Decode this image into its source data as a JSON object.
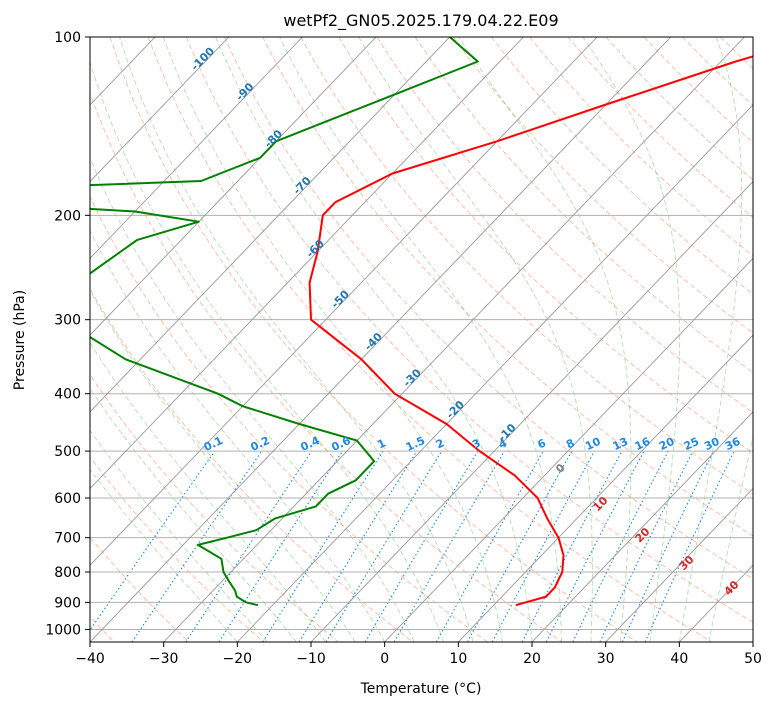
{
  "chart_data": {
    "type": "line",
    "subtype": "skew-t log-p",
    "title": "wetPf2_GN05.2025.179.04.22.E09",
    "xlabel": "Temperature (°C)",
    "ylabel": "Pressure (hPa)",
    "xlim": [
      -40,
      50
    ],
    "ylim": [
      1050,
      100
    ],
    "yscale": "log",
    "x_ticks": [
      -40,
      -30,
      -20,
      -10,
      0,
      10,
      20,
      30,
      40,
      50
    ],
    "y_ticks": [
      100,
      200,
      300,
      400,
      500,
      600,
      700,
      800,
      900,
      1000
    ],
    "grid": true,
    "colors": {
      "temperature": "#ff0000",
      "dewpoint": "#008000",
      "isotherm_label": "#1f77b4",
      "mixing_ratio": "#1e88e5",
      "moist_adiabat": "#2ca02c",
      "dry_adiabat": "#ff7f50",
      "grid": "#b0b0b0",
      "skew_line": "#999999"
    },
    "series": [
      {
        "name": "Temperature",
        "color": "#ff0000",
        "points": [
          [
            100,
            -20
          ],
          [
            110,
            -28
          ],
          [
            130,
            -40
          ],
          [
            150,
            -50
          ],
          [
            170,
            -60
          ],
          [
            190,
            -64
          ],
          [
            200,
            -64
          ],
          [
            230,
            -60
          ],
          [
            260,
            -57
          ],
          [
            300,
            -52
          ],
          [
            350,
            -40
          ],
          [
            400,
            -31
          ],
          [
            450,
            -20
          ],
          [
            500,
            -12
          ],
          [
            550,
            -4
          ],
          [
            600,
            2
          ],
          [
            650,
            6
          ],
          [
            700,
            10
          ],
          [
            750,
            13
          ],
          [
            800,
            15
          ],
          [
            850,
            16
          ],
          [
            880,
            16
          ],
          [
            900,
            14
          ],
          [
            910,
            13
          ]
        ]
      },
      {
        "name": "Dewpoint",
        "color": "#008000",
        "points": [
          [
            100,
            -70
          ],
          [
            110,
            -63
          ],
          [
            125,
            -70
          ],
          [
            150,
            -80
          ],
          [
            160,
            -80
          ],
          [
            175,
            -85
          ],
          [
            180,
            -110
          ],
          [
            190,
            -113
          ],
          [
            197,
            -90
          ],
          [
            205,
            -80
          ],
          [
            220,
            -86
          ],
          [
            250,
            -88
          ],
          [
            270,
            -92
          ],
          [
            290,
            -87
          ],
          [
            320,
            -80
          ],
          [
            350,
            -72
          ],
          [
            400,
            -55
          ],
          [
            420,
            -50
          ],
          [
            450,
            -40
          ],
          [
            480,
            -30
          ],
          [
            520,
            -25
          ],
          [
            560,
            -25
          ],
          [
            590,
            -27
          ],
          [
            620,
            -27
          ],
          [
            650,
            -31
          ],
          [
            680,
            -32
          ],
          [
            700,
            -35
          ],
          [
            720,
            -38
          ],
          [
            760,
            -33
          ],
          [
            800,
            -31
          ],
          [
            830,
            -29
          ],
          [
            860,
            -27
          ],
          [
            880,
            -26
          ],
          [
            900,
            -24
          ],
          [
            910,
            -22
          ]
        ]
      }
    ],
    "isotherm_labels": [
      "-100",
      "-90",
      "-80",
      "-70",
      "-60",
      "-50",
      "-40",
      "-30",
      "-20",
      "-10"
    ],
    "mixing_ratio_labels": [
      "0.1",
      "0.2",
      "0.4",
      "0.6",
      "1",
      "1.5",
      "2",
      "3",
      "4",
      "6",
      "8",
      "10",
      "13",
      "16",
      "20",
      "25",
      "30",
      "36"
    ],
    "mixing_ratio_values": [
      0.1,
      0.2,
      0.4,
      0.6,
      1,
      1.5,
      2,
      3,
      4,
      6,
      8,
      10,
      13,
      16,
      20,
      25,
      30,
      36
    ],
    "moist_labels": [
      "0",
      "10",
      "20",
      "30",
      "40"
    ],
    "moist_values": [
      0,
      10,
      20,
      30,
      40
    ],
    "isotherm_values": [
      -100,
      -90,
      -80,
      -70,
      -60,
      -50,
      -40,
      -30,
      -20,
      -10
    ]
  }
}
